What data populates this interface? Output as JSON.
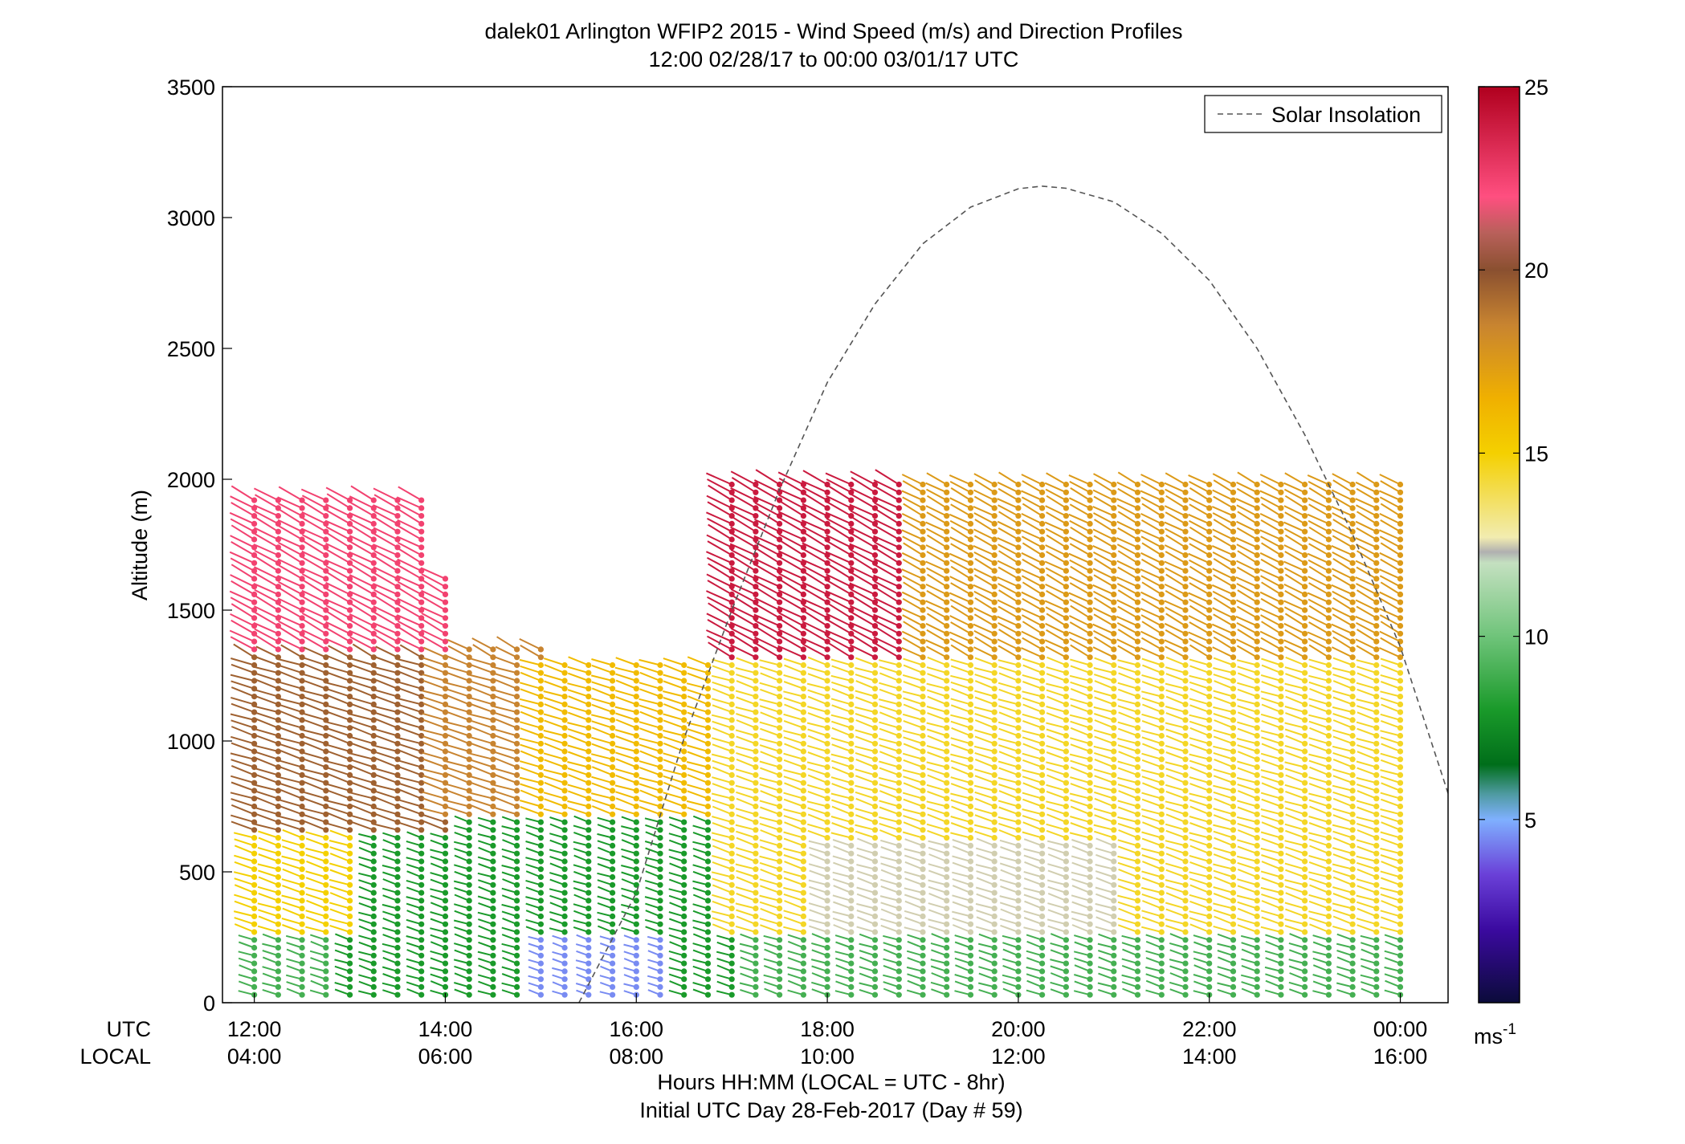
{
  "title_line1": "dalek01 Arlington WFIP2 2015 - Wind Speed (m/s) and Direction Profiles",
  "title_line2": "12:00 02/28/17 to 00:00 03/01/17  UTC",
  "legend_label": "Solar Insolation",
  "row_label_utc": "UTC",
  "row_label_local": "LOCAL",
  "xlabel_line1": "Hours HH:MM  (LOCAL = UTC - 8hr)",
  "xlabel_line2": "Initial UTC Day 28-Feb-2017 (Day # 59)",
  "colorbar_unit": "ms",
  "colorbar_unit_sup": "-1",
  "chart_data": {
    "type": "wind barb profile",
    "ylabel": "Altitude (m)",
    "ylim": [
      0,
      3500
    ],
    "xlim_hours": [
      11.6666,
      24.5
    ],
    "y_ticks": [
      {
        "v": 0,
        "label": "0"
      },
      {
        "v": 500,
        "label": "500"
      },
      {
        "v": 1000,
        "label": "1000"
      },
      {
        "v": 1500,
        "label": "1500"
      },
      {
        "v": 2000,
        "label": "2000"
      },
      {
        "v": 2500,
        "label": "2500"
      },
      {
        "v": 3000,
        "label": "3000"
      },
      {
        "v": 3500,
        "label": "3500"
      }
    ],
    "x_ticks": [
      {
        "h": 12,
        "utc": "12:00",
        "local": "04:00"
      },
      {
        "h": 14,
        "utc": "14:00",
        "local": "06:00"
      },
      {
        "h": 16,
        "utc": "16:00",
        "local": "08:00"
      },
      {
        "h": 18,
        "utc": "18:00",
        "local": "10:00"
      },
      {
        "h": 20,
        "utc": "20:00",
        "local": "12:00"
      },
      {
        "h": 22,
        "utc": "22:00",
        "local": "14:00"
      },
      {
        "h": 24,
        "utc": "00:00",
        "local": "16:00"
      }
    ],
    "colorbar": {
      "range": [
        0,
        25
      ],
      "ticks": [
        {
          "v": 5,
          "label": "5"
        },
        {
          "v": 10,
          "label": "10"
        },
        {
          "v": 15,
          "label": "15"
        },
        {
          "v": 20,
          "label": "20"
        },
        {
          "v": 25,
          "label": "25"
        }
      ],
      "stops": [
        {
          "v": 0,
          "color": "#0b0b3a"
        },
        {
          "v": 2,
          "color": "#3b0aa0"
        },
        {
          "v": 3.5,
          "color": "#6a40d8"
        },
        {
          "v": 5,
          "color": "#7fb0ff"
        },
        {
          "v": 5.7,
          "color": "#4e9aa0"
        },
        {
          "v": 6.5,
          "color": "#006e1a"
        },
        {
          "v": 8,
          "color": "#1a9a2a"
        },
        {
          "v": 10,
          "color": "#6fc47a"
        },
        {
          "v": 12,
          "color": "#c4e0c0"
        },
        {
          "v": 12.3,
          "color": "#b0b0b0"
        },
        {
          "v": 12.7,
          "color": "#f2ecb0"
        },
        {
          "v": 15,
          "color": "#f4d000"
        },
        {
          "v": 16.5,
          "color": "#f0b000"
        },
        {
          "v": 18.5,
          "color": "#c88430"
        },
        {
          "v": 20,
          "color": "#8a5030"
        },
        {
          "v": 21,
          "color": "#b8605a"
        },
        {
          "v": 22,
          "color": "#ff4f80"
        },
        {
          "v": 25,
          "color": "#b0001e"
        }
      ]
    },
    "solar_insolation": {
      "style": "dashed",
      "color": "#555555",
      "peak_hour": 20.25,
      "peak_value": 3120,
      "points": [
        [
          15.4,
          0
        ],
        [
          16.0,
          420
        ],
        [
          16.5,
          1010
        ],
        [
          17.0,
          1500
        ],
        [
          17.5,
          1960
        ],
        [
          18.0,
          2370
        ],
        [
          18.5,
          2670
        ],
        [
          19.0,
          2900
        ],
        [
          19.5,
          3040
        ],
        [
          20.0,
          3110
        ],
        [
          20.25,
          3120
        ],
        [
          20.5,
          3112
        ],
        [
          21.0,
          3060
        ],
        [
          21.5,
          2940
        ],
        [
          22.0,
          2760
        ],
        [
          22.5,
          2500
        ],
        [
          23.0,
          2170
        ],
        [
          23.5,
          1790
        ],
        [
          24.0,
          1360
        ],
        [
          24.5,
          800
        ]
      ]
    },
    "profile_times_hours": [
      12.0,
      12.25,
      12.5,
      12.75,
      13.0,
      13.25,
      13.5,
      13.75,
      14.0,
      14.25,
      14.5,
      14.75,
      15.0,
      15.25,
      15.5,
      15.75,
      16.0,
      16.25,
      16.5,
      16.75,
      17.0,
      17.25,
      17.5,
      17.75,
      18.0,
      18.25,
      18.5,
      18.75,
      19.0,
      19.25,
      19.5,
      19.75,
      20.0,
      20.25,
      20.5,
      20.75,
      21.0,
      21.25,
      21.5,
      21.75,
      22.0,
      22.25,
      22.5,
      22.75,
      23.0,
      23.25,
      23.5,
      23.75,
      24.0
    ],
    "altitude_levels_m": [
      30,
      60,
      90,
      120,
      150,
      180,
      210,
      240,
      270,
      300,
      330,
      360,
      390,
      420,
      450,
      480,
      510,
      540,
      570,
      600,
      630,
      660,
      690,
      720,
      750,
      780,
      810,
      840,
      870,
      900,
      930,
      960,
      990,
      1020,
      1050,
      1080,
      1110,
      1140,
      1170,
      1200,
      1230,
      1260,
      1290,
      1320,
      1350,
      1380,
      1410,
      1440,
      1470,
      1500,
      1530,
      1560,
      1590,
      1620,
      1650,
      1680,
      1710,
      1740,
      1770,
      1800,
      1830,
      1860,
      1890,
      1920,
      1950,
      1980,
      2010
    ],
    "speed_field_note": "Wind speed (m/s) by time and altitude, approximated from the plotted barb colors",
    "speed_regions": [
      {
        "t0": 12.0,
        "t1": 24.0,
        "z0": 0,
        "z1": 250,
        "speed": 9
      },
      {
        "t0": 13.0,
        "t1": 17.0,
        "z0": 0,
        "z1": 700,
        "speed": 8
      },
      {
        "t0": 15.0,
        "t1": 16.25,
        "z0": 0,
        "z1": 250,
        "speed": 4.5
      },
      {
        "t0": 12.0,
        "t1": 13.0,
        "z0": 250,
        "z1": 650,
        "speed": 15
      },
      {
        "t0": 12.0,
        "t1": 14.0,
        "z0": 650,
        "z1": 1350,
        "speed": 19.5
      },
      {
        "t0": 14.0,
        "t1": 15.0,
        "z0": 700,
        "z1": 1350,
        "speed": 18.5
      },
      {
        "t0": 12.0,
        "t1": 14.0,
        "z0": 1350,
        "z1": 1920,
        "speed": 22.5
      },
      {
        "t0": 15.0,
        "t1": 17.0,
        "z0": 700,
        "z1": 1300,
        "speed": 16
      },
      {
        "t0": 17.0,
        "t1": 24.0,
        "z0": 250,
        "z1": 1300,
        "speed": 14.5
      },
      {
        "t0": 18.0,
        "t1": 21.0,
        "z0": 250,
        "z1": 600,
        "speed": 12.5
      },
      {
        "t0": 17.0,
        "t1": 19.0,
        "z0": 1300,
        "z1": 2000,
        "speed": 24
      },
      {
        "t0": 19.0,
        "t1": 24.0,
        "z0": 1300,
        "z1": 2000,
        "speed": 17.5
      }
    ]
  }
}
